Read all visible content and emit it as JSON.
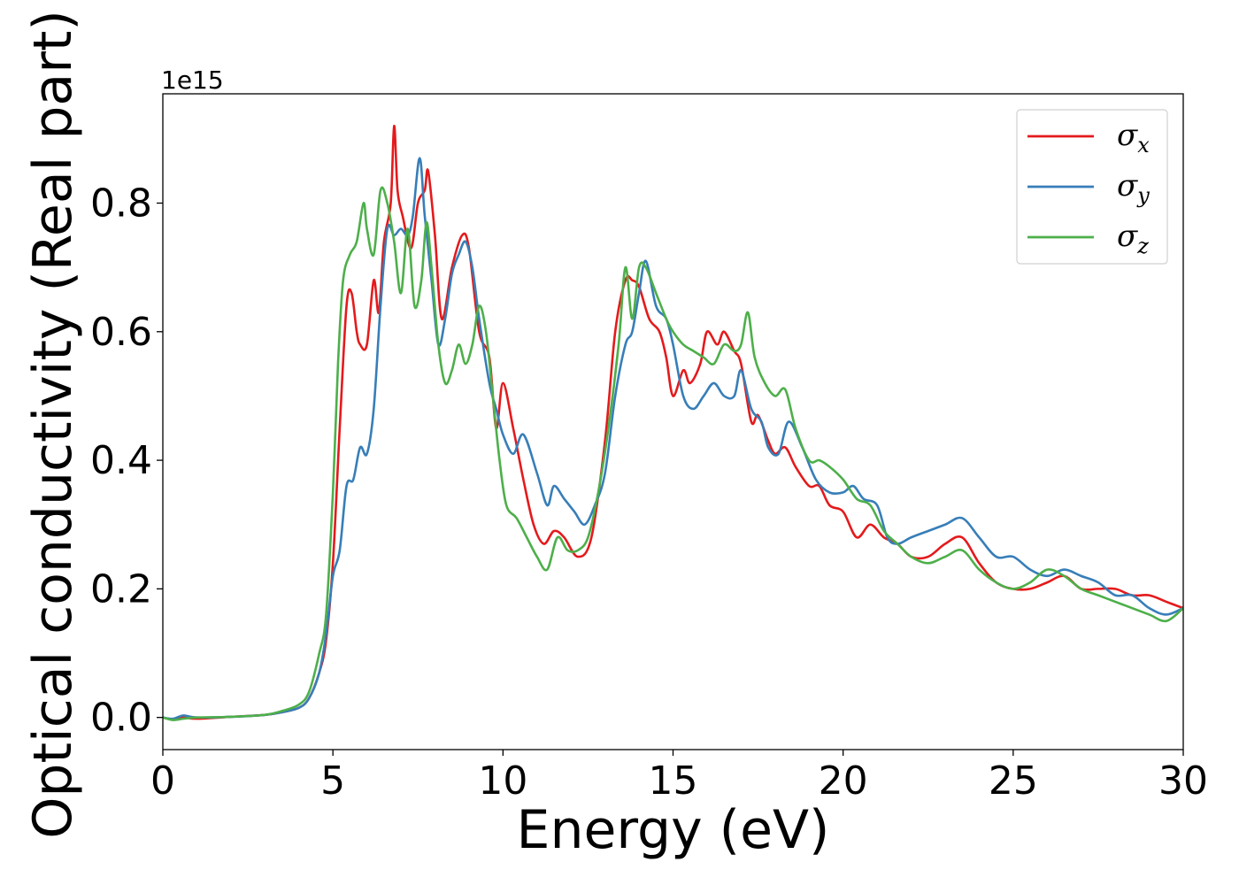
{
  "chart_data": {
    "type": "line",
    "title": "",
    "xlabel": "Energy (eV)",
    "ylabel": "Optical conductivity (Real part)",
    "y_offset_label": "1e15",
    "xlim": [
      0,
      30
    ],
    "ylim": [
      -0.05,
      0.97
    ],
    "x_ticks": [
      0,
      5,
      10,
      15,
      20,
      25,
      30
    ],
    "y_ticks": [
      0.0,
      0.2,
      0.4,
      0.6,
      0.8
    ],
    "y_tick_labels": [
      "0.0",
      "0.2",
      "0.4",
      "0.6",
      "0.8"
    ],
    "grid": false,
    "legend_position": "top-right",
    "colors": {
      "sigma_x": "#e41a1c",
      "sigma_y": "#377eb8",
      "sigma_z": "#4daf4a"
    },
    "series": [
      {
        "name": "σx",
        "symbol": "σ",
        "subscript": "x",
        "color": "#e41a1c",
        "x": [
          0,
          0.3,
          0.6,
          1.0,
          2.0,
          3.0,
          3.5,
          4.0,
          4.3,
          4.6,
          4.8,
          5.0,
          5.2,
          5.4,
          5.55,
          5.7,
          5.8,
          6.0,
          6.2,
          6.35,
          6.5,
          6.7,
          6.8,
          6.9,
          7.05,
          7.3,
          7.5,
          7.7,
          7.8,
          8.0,
          8.2,
          8.5,
          8.8,
          9.0,
          9.3,
          9.6,
          9.8,
          10.0,
          10.3,
          10.6,
          10.9,
          11.2,
          11.5,
          11.8,
          12.2,
          12.6,
          13.0,
          13.3,
          13.6,
          13.8,
          14.0,
          14.3,
          14.6,
          14.8,
          15.0,
          15.3,
          15.5,
          15.8,
          16.0,
          16.3,
          16.5,
          16.8,
          17.0,
          17.3,
          17.5,
          17.8,
          18.0,
          18.3,
          18.6,
          19.0,
          19.3,
          19.6,
          20.0,
          20.4,
          20.8,
          21.2,
          21.6,
          22.0,
          22.5,
          23.0,
          23.5,
          24.0,
          24.5,
          25.0,
          25.5,
          26.0,
          26.5,
          27.0,
          27.5,
          28.0,
          28.5,
          29.0,
          29.5,
          30.0
        ],
        "y": [
          0.0,
          -0.003,
          0.0,
          -0.002,
          0.001,
          0.004,
          0.008,
          0.015,
          0.03,
          0.07,
          0.12,
          0.24,
          0.45,
          0.64,
          0.66,
          0.6,
          0.58,
          0.58,
          0.68,
          0.63,
          0.74,
          0.8,
          0.92,
          0.82,
          0.78,
          0.73,
          0.8,
          0.82,
          0.85,
          0.75,
          0.62,
          0.7,
          0.75,
          0.73,
          0.6,
          0.56,
          0.45,
          0.52,
          0.45,
          0.37,
          0.3,
          0.27,
          0.29,
          0.28,
          0.25,
          0.28,
          0.43,
          0.6,
          0.68,
          0.68,
          0.67,
          0.62,
          0.6,
          0.56,
          0.5,
          0.54,
          0.52,
          0.55,
          0.6,
          0.58,
          0.6,
          0.57,
          0.55,
          0.46,
          0.47,
          0.43,
          0.41,
          0.42,
          0.39,
          0.36,
          0.36,
          0.33,
          0.32,
          0.28,
          0.3,
          0.28,
          0.27,
          0.25,
          0.25,
          0.27,
          0.28,
          0.24,
          0.21,
          0.2,
          0.2,
          0.21,
          0.22,
          0.2,
          0.2,
          0.2,
          0.19,
          0.19,
          0.18,
          0.17
        ]
      },
      {
        "name": "σy",
        "symbol": "σ",
        "subscript": "y",
        "color": "#377eb8",
        "x": [
          0,
          0.3,
          0.6,
          1.0,
          2.0,
          3.0,
          3.5,
          4.0,
          4.3,
          4.6,
          4.8,
          5.0,
          5.2,
          5.4,
          5.6,
          5.8,
          6.0,
          6.2,
          6.4,
          6.6,
          6.8,
          7.0,
          7.2,
          7.35,
          7.55,
          7.7,
          7.9,
          8.1,
          8.3,
          8.5,
          8.7,
          8.9,
          9.1,
          9.3,
          9.6,
          9.8,
          10.0,
          10.3,
          10.6,
          11.0,
          11.3,
          11.5,
          11.8,
          12.1,
          12.4,
          12.7,
          13.0,
          13.3,
          13.6,
          13.8,
          14.0,
          14.2,
          14.5,
          14.8,
          15.0,
          15.3,
          15.6,
          15.9,
          16.2,
          16.5,
          16.8,
          17.0,
          17.3,
          17.6,
          17.8,
          18.1,
          18.4,
          18.8,
          19.2,
          19.6,
          20.0,
          20.3,
          20.6,
          21.0,
          21.3,
          21.6,
          22.0,
          22.5,
          23.0,
          23.5,
          24.0,
          24.5,
          25.0,
          25.5,
          26.0,
          26.5,
          27.0,
          27.5,
          28.0,
          28.5,
          29.0,
          29.5,
          30.0
        ],
        "y": [
          0.0,
          -0.002,
          0.003,
          0.0,
          0.001,
          0.004,
          0.008,
          0.015,
          0.03,
          0.07,
          0.13,
          0.22,
          0.26,
          0.36,
          0.37,
          0.42,
          0.41,
          0.48,
          0.64,
          0.76,
          0.75,
          0.76,
          0.75,
          0.78,
          0.87,
          0.78,
          0.68,
          0.58,
          0.62,
          0.69,
          0.72,
          0.74,
          0.7,
          0.62,
          0.52,
          0.48,
          0.44,
          0.41,
          0.44,
          0.38,
          0.33,
          0.36,
          0.34,
          0.32,
          0.3,
          0.33,
          0.38,
          0.5,
          0.58,
          0.6,
          0.66,
          0.71,
          0.64,
          0.62,
          0.58,
          0.5,
          0.48,
          0.5,
          0.52,
          0.5,
          0.5,
          0.54,
          0.48,
          0.46,
          0.42,
          0.41,
          0.46,
          0.42,
          0.37,
          0.35,
          0.35,
          0.36,
          0.34,
          0.33,
          0.28,
          0.27,
          0.28,
          0.29,
          0.3,
          0.31,
          0.28,
          0.25,
          0.25,
          0.23,
          0.22,
          0.23,
          0.22,
          0.21,
          0.19,
          0.19,
          0.17,
          0.16,
          0.17
        ]
      },
      {
        "name": "σz",
        "symbol": "σ",
        "subscript": "z",
        "color": "#4daf4a",
        "x": [
          0,
          0.3,
          0.6,
          1.0,
          2.0,
          3.0,
          3.5,
          4.0,
          4.3,
          4.6,
          4.8,
          5.0,
          5.15,
          5.3,
          5.5,
          5.7,
          5.9,
          6.0,
          6.2,
          6.4,
          6.6,
          6.8,
          7.0,
          7.2,
          7.4,
          7.6,
          7.75,
          7.9,
          8.1,
          8.3,
          8.5,
          8.7,
          8.9,
          9.1,
          9.3,
          9.5,
          9.7,
          9.9,
          10.1,
          10.4,
          10.7,
          11.0,
          11.3,
          11.6,
          11.9,
          12.2,
          12.5,
          12.8,
          13.1,
          13.4,
          13.6,
          13.8,
          14.0,
          14.2,
          14.5,
          14.8,
          15.0,
          15.3,
          15.6,
          15.9,
          16.2,
          16.5,
          16.8,
          17.0,
          17.2,
          17.4,
          17.7,
          18.0,
          18.3,
          18.6,
          19.0,
          19.3,
          19.6,
          20.0,
          20.4,
          20.8,
          21.2,
          21.6,
          22.0,
          22.5,
          23.0,
          23.5,
          24.0,
          24.5,
          25.0,
          25.5,
          26.0,
          26.5,
          27.0,
          27.5,
          28.0,
          28.5,
          29.0,
          29.5,
          30.0
        ],
        "y": [
          0.0,
          -0.004,
          -0.002,
          0.0,
          0.001,
          0.004,
          0.01,
          0.02,
          0.04,
          0.1,
          0.16,
          0.35,
          0.55,
          0.68,
          0.72,
          0.74,
          0.8,
          0.76,
          0.72,
          0.82,
          0.8,
          0.74,
          0.66,
          0.76,
          0.64,
          0.68,
          0.77,
          0.7,
          0.58,
          0.52,
          0.54,
          0.58,
          0.55,
          0.58,
          0.64,
          0.6,
          0.5,
          0.4,
          0.33,
          0.31,
          0.28,
          0.25,
          0.23,
          0.28,
          0.26,
          0.26,
          0.28,
          0.35,
          0.45,
          0.58,
          0.7,
          0.62,
          0.7,
          0.7,
          0.66,
          0.62,
          0.6,
          0.58,
          0.57,
          0.56,
          0.55,
          0.58,
          0.57,
          0.58,
          0.63,
          0.56,
          0.52,
          0.5,
          0.51,
          0.45,
          0.4,
          0.4,
          0.39,
          0.37,
          0.34,
          0.33,
          0.29,
          0.27,
          0.25,
          0.24,
          0.25,
          0.26,
          0.23,
          0.21,
          0.2,
          0.21,
          0.23,
          0.22,
          0.2,
          0.19,
          0.18,
          0.17,
          0.16,
          0.15,
          0.17
        ]
      }
    ]
  }
}
